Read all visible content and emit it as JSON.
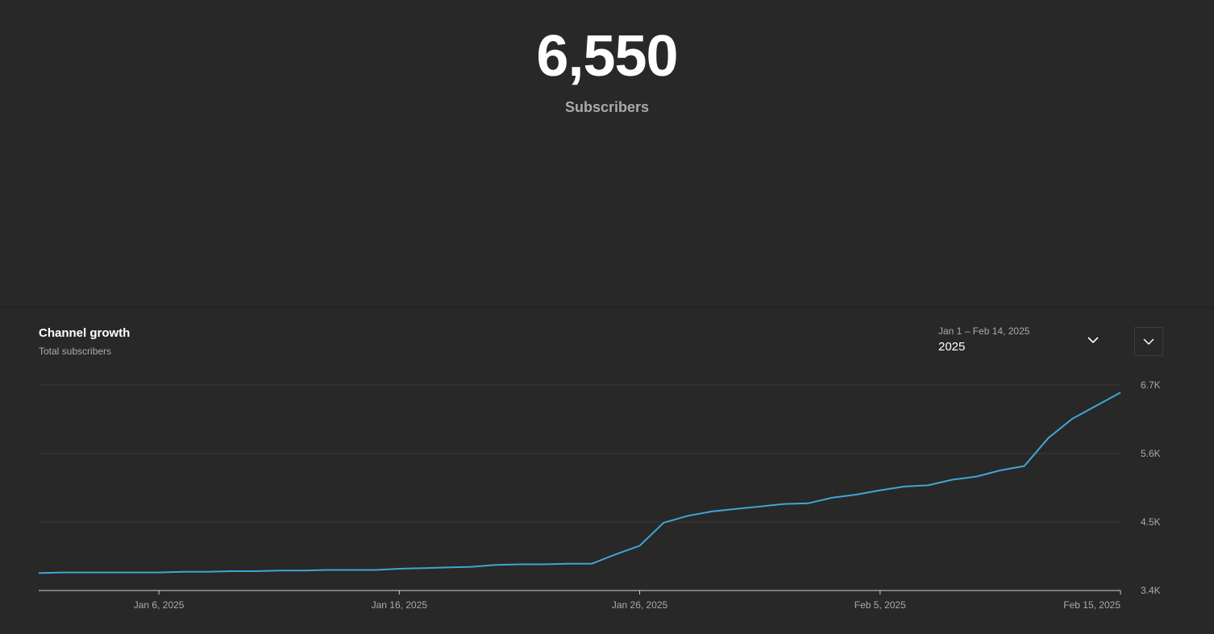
{
  "summary": {
    "count": "6,550",
    "label": "Subscribers"
  },
  "card": {
    "title": "Channel growth",
    "subtitle": "Total subscribers",
    "period_range": "Jan 1 – Feb 14, 2025",
    "period_value": "2025"
  },
  "icons": {
    "period_dropdown": "chevron-down-icon",
    "more_options": "chevron-down-icon"
  },
  "colors": {
    "background": "#282828",
    "line": "#3ea6d6",
    "gridline": "#3d3d3d",
    "baseline": "#cfcfcf",
    "muted_text": "#aaaaaa"
  },
  "chart_data": {
    "type": "line",
    "title": "Channel growth",
    "subtitle": "Total subscribers",
    "x_axis": {
      "start": "2025-01-01",
      "end": "2025-02-15",
      "tick_labels": [
        "Jan 6, 2025",
        "Jan 16, 2025",
        "Jan 26, 2025",
        "Feb 5, 2025",
        "Feb 15, 2025"
      ],
      "tick_dates": [
        "2025-01-06",
        "2025-01-16",
        "2025-01-26",
        "2025-02-05",
        "2025-02-15"
      ]
    },
    "y_axis": {
      "min": 3400,
      "max": 6700,
      "ticks": [
        3400,
        4500,
        5600,
        6700
      ],
      "tick_labels": [
        "3.4K",
        "4.5K",
        "5.6K",
        "6.7K"
      ],
      "position": "right"
    },
    "grid": true,
    "series": [
      {
        "x": [
          "2025-01-01",
          "2025-01-02",
          "2025-01-03",
          "2025-01-04",
          "2025-01-05",
          "2025-01-06",
          "2025-01-07",
          "2025-01-08",
          "2025-01-09",
          "2025-01-10",
          "2025-01-11",
          "2025-01-12",
          "2025-01-13",
          "2025-01-14",
          "2025-01-15",
          "2025-01-16",
          "2025-01-17",
          "2025-01-18",
          "2025-01-19",
          "2025-01-20",
          "2025-01-21",
          "2025-01-22",
          "2025-01-23",
          "2025-01-24",
          "2025-01-25",
          "2025-01-26",
          "2025-01-27",
          "2025-01-28",
          "2025-01-29",
          "2025-01-30",
          "2025-01-31",
          "2025-02-01",
          "2025-02-02",
          "2025-02-03",
          "2025-02-04",
          "2025-02-05",
          "2025-02-06",
          "2025-02-07",
          "2025-02-08",
          "2025-02-09",
          "2025-02-10",
          "2025-02-11",
          "2025-02-12",
          "2025-02-13",
          "2025-02-14",
          "2025-02-15"
        ],
        "y": [
          3680,
          3690,
          3690,
          3690,
          3690,
          3690,
          3700,
          3700,
          3710,
          3710,
          3720,
          3720,
          3730,
          3730,
          3730,
          3750,
          3760,
          3770,
          3780,
          3810,
          3820,
          3820,
          3830,
          3830,
          3980,
          4120,
          4490,
          4600,
          4670,
          4710,
          4750,
          4790,
          4800,
          4890,
          4940,
          5010,
          5070,
          5090,
          5180,
          5230,
          5330,
          5400,
          5850,
          6160,
          6370,
          6580
        ]
      }
    ]
  }
}
